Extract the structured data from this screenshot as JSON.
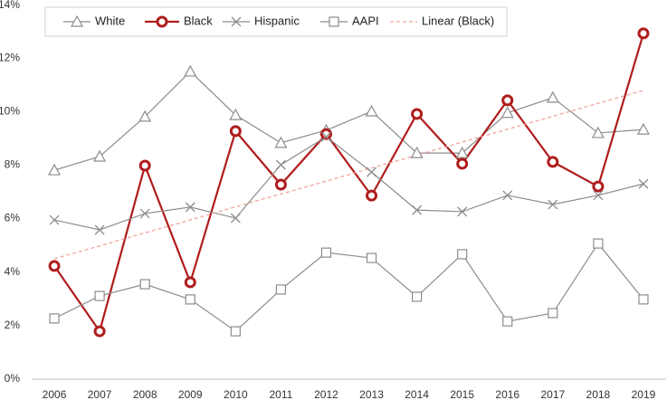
{
  "chart_data": {
    "type": "line",
    "categories": [
      "2006",
      "2007",
      "2008",
      "2009",
      "2010",
      "2011",
      "2012",
      "2013",
      "2014",
      "2015",
      "2016",
      "2017",
      "2018",
      "2019"
    ],
    "ylim": [
      0,
      14
    ],
    "yticks": [
      {
        "value": 0,
        "label": "0%"
      },
      {
        "value": 2,
        "label": "2%"
      },
      {
        "value": 4,
        "label": "4%"
      },
      {
        "value": 6,
        "label": "6%"
      },
      {
        "value": 8,
        "label": "8%"
      },
      {
        "value": 10,
        "label": "10%"
      },
      {
        "value": 12,
        "label": "12%"
      },
      {
        "value": 14,
        "label": "14%"
      }
    ],
    "grid": false,
    "legend": "top",
    "series": [
      {
        "name": "White",
        "color": "#8c8c8c",
        "marker": "triangle",
        "values": [
          7.81,
          8.32,
          9.81,
          11.5,
          9.87,
          8.83,
          9.3,
          10.01,
          8.45,
          8.45,
          9.95,
          10.52,
          9.2,
          9.33
        ]
      },
      {
        "name": "Black",
        "color": "#b01c1c",
        "marker": "circle",
        "values": [
          4.23,
          1.79,
          7.98,
          3.62,
          9.27,
          7.27,
          9.16,
          6.86,
          9.91,
          8.05,
          10.42,
          8.12,
          7.2,
          12.92
        ]
      },
      {
        "name": "Hispanic",
        "color": "#8c8c8c",
        "marker": "x",
        "values": [
          5.95,
          5.58,
          6.19,
          6.43,
          6.02,
          8.01,
          9.06,
          7.74,
          6.32,
          6.26,
          6.87,
          6.53,
          6.87,
          7.3
        ]
      },
      {
        "name": "AAPI",
        "color": "#8c8c8c",
        "marker": "square",
        "values": [
          2.27,
          3.11,
          3.55,
          2.98,
          1.79,
          3.35,
          4.73,
          4.53,
          3.08,
          4.67,
          2.16,
          2.47,
          5.07,
          2.98
        ]
      },
      {
        "name": "Linear (Black)",
        "color": "#f4a49c",
        "marker": "none",
        "dashed": true,
        "values": [
          4.5,
          4.98,
          5.47,
          5.95,
          6.44,
          6.92,
          7.4,
          7.89,
          8.37,
          8.86,
          9.34,
          9.82,
          10.31,
          10.79
        ]
      }
    ]
  }
}
